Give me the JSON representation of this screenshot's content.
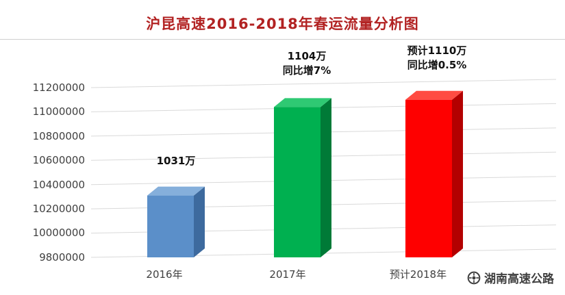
{
  "chart_data": {
    "type": "bar",
    "title": "沪昆高速2016-2018年春运流量分析图",
    "categories": [
      "2016年",
      "2017年",
      "预计2018年"
    ],
    "values": [
      10310000,
      11040000,
      11100000
    ],
    "yticks": [
      11200000,
      11000000,
      10800000,
      10600000,
      10400000,
      10200000,
      10000000,
      9800000
    ],
    "ylim": [
      9800000,
      11200000
    ],
    "grid": true,
    "legend": false,
    "style": "3d-column",
    "bars": [
      {
        "category": "2016年",
        "value": 10310000,
        "label_lines": [
          "1031万"
        ],
        "colors": {
          "front": "#5B8FC9",
          "top": "#85AFDB",
          "side": "#3D6A9E"
        }
      },
      {
        "category": "2017年",
        "value": 11040000,
        "label_lines": [
          "1104万",
          "同比增7%"
        ],
        "colors": {
          "front": "#00B050",
          "top": "#2FC973",
          "side": "#007A37"
        }
      },
      {
        "category": "预计2018年",
        "value": 11100000,
        "label_lines": [
          "预计1110万",
          "同比增0.5%"
        ],
        "colors": {
          "front": "#FE0000",
          "top": "#FF4B42",
          "side": "#B30000"
        }
      }
    ],
    "colors": {
      "title": "#B22222",
      "grid": "#D9D9D9",
      "tick_text": "#404040",
      "label_text": "#111111"
    }
  },
  "watermark": {
    "text": "湖南高速公路",
    "icon": "flower-emblem",
    "color": "#3F3F3F"
  }
}
